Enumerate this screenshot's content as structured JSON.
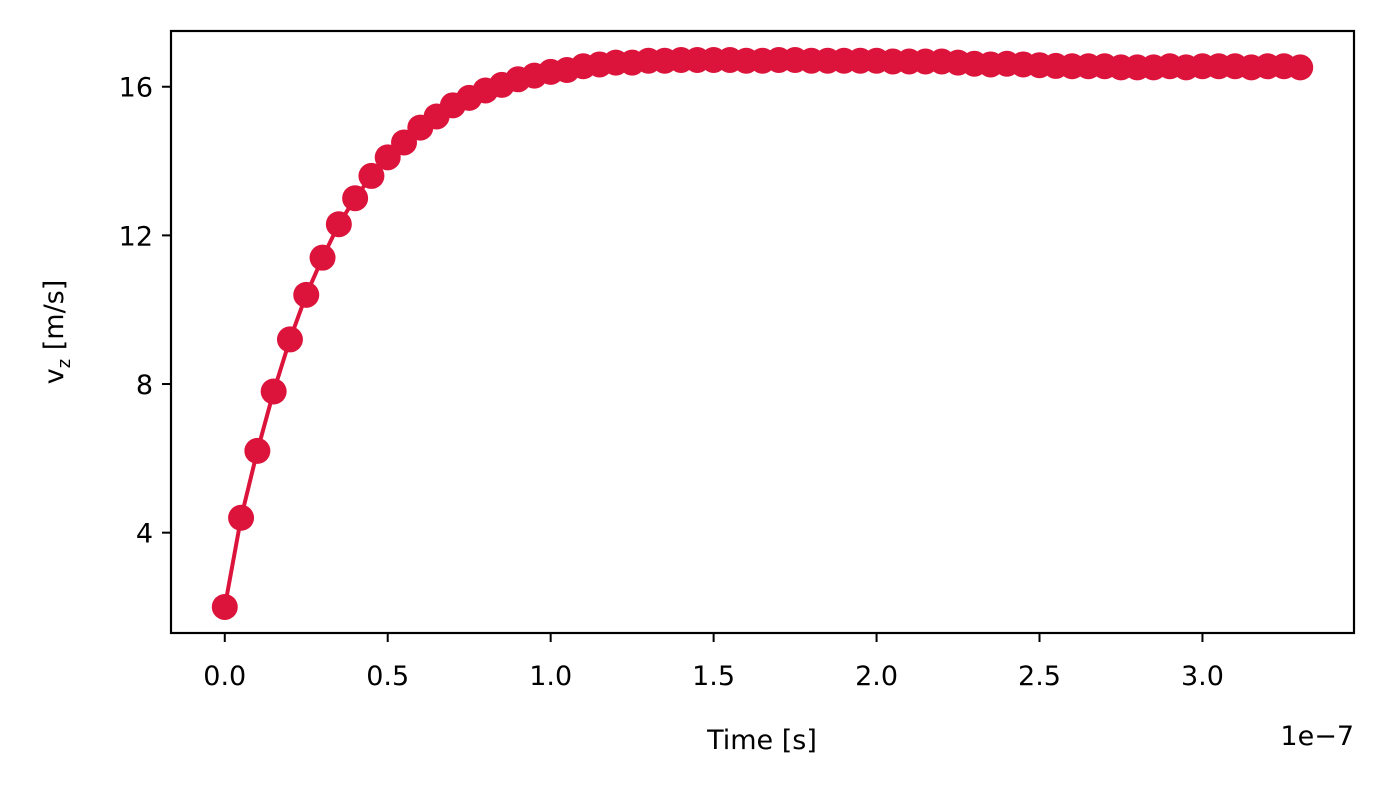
{
  "chart_data": {
    "type": "line",
    "title": "",
    "xlabel": "Time [s]",
    "ylabel_main": "v",
    "ylabel_sub": "z",
    "ylabel_unit": " [m/s]",
    "x_offset_label": "1e−7",
    "x_scale": 1e-07,
    "xlim": [
      -0.165,
      3.465
    ],
    "ylim": [
      1.3,
      17.5
    ],
    "x_ticks": [
      0.0,
      0.5,
      1.0,
      1.5,
      2.0,
      2.5,
      3.0
    ],
    "x_tick_labels": [
      "0.0",
      "0.5",
      "1.0",
      "1.5",
      "2.0",
      "2.5",
      "3.0"
    ],
    "y_ticks": [
      4,
      8,
      12,
      16
    ],
    "y_tick_labels": [
      "4",
      "8",
      "12",
      "16"
    ],
    "grid": false,
    "legend": "none",
    "marker": "circle",
    "color": "#dc143c",
    "series": [
      {
        "x": [
          0.0,
          0.05,
          0.1,
          0.15,
          0.2,
          0.25,
          0.3,
          0.35,
          0.4,
          0.45,
          0.5,
          0.55,
          0.6,
          0.65,
          0.7,
          0.75,
          0.8,
          0.85,
          0.9,
          0.95,
          1.0,
          1.05,
          1.1,
          1.15,
          1.2,
          1.25,
          1.3,
          1.35,
          1.4,
          1.45,
          1.5,
          1.55,
          1.6,
          1.65,
          1.7,
          1.75,
          1.8,
          1.85,
          1.9,
          1.95,
          2.0,
          2.05,
          2.1,
          2.15,
          2.2,
          2.25,
          2.3,
          2.35,
          2.4,
          2.45,
          2.5,
          2.55,
          2.6,
          2.65,
          2.7,
          2.75,
          2.8,
          2.85,
          2.9,
          2.95,
          3.0,
          3.05,
          3.1,
          3.15,
          3.2,
          3.25,
          3.3
        ],
        "y": [
          2.0,
          4.4,
          6.2,
          7.8,
          9.2,
          10.4,
          11.4,
          12.3,
          13.0,
          13.6,
          14.1,
          14.5,
          14.9,
          15.2,
          15.5,
          15.7,
          15.9,
          16.05,
          16.2,
          16.3,
          16.4,
          16.45,
          16.55,
          16.6,
          16.65,
          16.65,
          16.7,
          16.7,
          16.72,
          16.72,
          16.72,
          16.72,
          16.7,
          16.7,
          16.72,
          16.72,
          16.7,
          16.7,
          16.7,
          16.7,
          16.7,
          16.68,
          16.68,
          16.68,
          16.68,
          16.65,
          16.62,
          16.6,
          16.62,
          16.6,
          16.58,
          16.56,
          16.55,
          16.55,
          16.55,
          16.52,
          16.52,
          16.52,
          16.55,
          16.52,
          16.55,
          16.55,
          16.55,
          16.52,
          16.55,
          16.55,
          16.52
        ]
      }
    ]
  }
}
